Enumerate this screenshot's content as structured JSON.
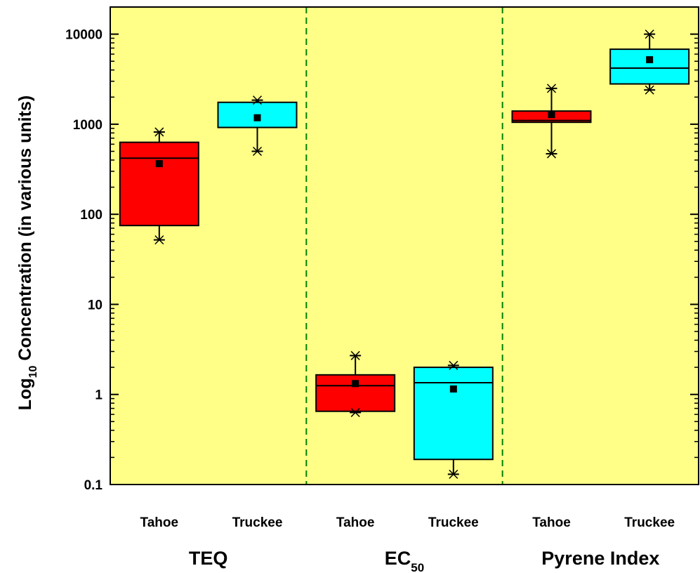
{
  "chart_data": {
    "type": "box",
    "ylabel": {
      "prefix": "Log",
      "sub": "10",
      "rest": " Concentration (in various units)"
    },
    "yscale": "log",
    "ylim": [
      0.1,
      20000
    ],
    "yticks": [
      0.1,
      1,
      10,
      100,
      1000,
      10000
    ],
    "ytick_labels": [
      "0.1",
      "1",
      "10",
      "100",
      "1000",
      "10000"
    ],
    "background": "#ffff88",
    "grid": false,
    "colors": {
      "Tahoe": "#ff0000",
      "Truckee": "#00ffff",
      "divider": "#008000"
    },
    "groups": [
      {
        "label": "TEQ",
        "label_sub": "",
        "boxes": [
          {
            "category": "Tahoe",
            "min": 52,
            "q1": 75,
            "median": 420,
            "q3": 630,
            "max": 820,
            "mean": 365
          },
          {
            "category": "Truckee",
            "min": 500,
            "q1": 920,
            "median": 920,
            "q3": 1750,
            "max": 1850,
            "mean": 1180
          }
        ]
      },
      {
        "label": "EC",
        "label_sub": "50",
        "boxes": [
          {
            "category": "Tahoe",
            "min": 0.63,
            "q1": 0.65,
            "median": 1.25,
            "q3": 1.65,
            "max": 2.7,
            "mean": 1.32
          },
          {
            "category": "Truckee",
            "min": 0.13,
            "q1": 0.19,
            "median": 1.35,
            "q3": 2.0,
            "max": 2.1,
            "mean": 1.15
          }
        ]
      },
      {
        "label": "Pyrene Index",
        "label_sub": "",
        "boxes": [
          {
            "category": "Tahoe",
            "min": 470,
            "q1": 1050,
            "median": 1100,
            "q3": 1400,
            "max": 2500,
            "mean": 1280
          },
          {
            "category": "Truckee",
            "min": 2400,
            "q1": 2800,
            "median": 4200,
            "q3": 6800,
            "max": 10000,
            "mean": 5200
          }
        ]
      }
    ]
  }
}
